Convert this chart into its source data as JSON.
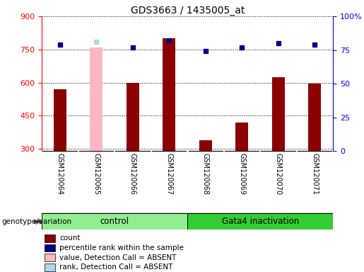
{
  "title": "GDS3663 / 1435005_at",
  "samples": [
    "GSM120064",
    "GSM120065",
    "GSM120066",
    "GSM120067",
    "GSM120068",
    "GSM120069",
    "GSM120070",
    "GSM120071"
  ],
  "count_values": [
    570,
    null,
    600,
    800,
    340,
    420,
    625,
    595
  ],
  "count_absent": [
    null,
    760,
    null,
    null,
    null,
    null,
    null,
    null
  ],
  "percentile_values": [
    79,
    null,
    77,
    82,
    74,
    77,
    80,
    79
  ],
  "percentile_absent": [
    null,
    81,
    null,
    null,
    null,
    null,
    null,
    null
  ],
  "ylim_left": [
    290,
    900
  ],
  "ylim_right": [
    0,
    100
  ],
  "yticks_left": [
    300,
    450,
    600,
    750,
    900
  ],
  "yticks_right": [
    0,
    25,
    50,
    75,
    100
  ],
  "bar_color": "#8B0000",
  "bar_absent_color": "#FFB6C1",
  "dot_color": "#00008B",
  "dot_absent_color": "#ADD8E6",
  "control_label": "control",
  "gata4_label": "Gata4 inactivation",
  "control_color": "#90EE90",
  "gata4_color": "#32CD32",
  "genotype_label": "genotype/variation",
  "legend_items": [
    {
      "label": "count",
      "color": "#8B0000"
    },
    {
      "label": "percentile rank within the sample",
      "color": "#00008B"
    },
    {
      "label": "value, Detection Call = ABSENT",
      "color": "#FFB6C1"
    },
    {
      "label": "rank, Detection Call = ABSENT",
      "color": "#ADD8E6"
    }
  ],
  "background_color": "#ffffff",
  "tick_area_bg": "#cccccc",
  "bar_width": 0.35
}
